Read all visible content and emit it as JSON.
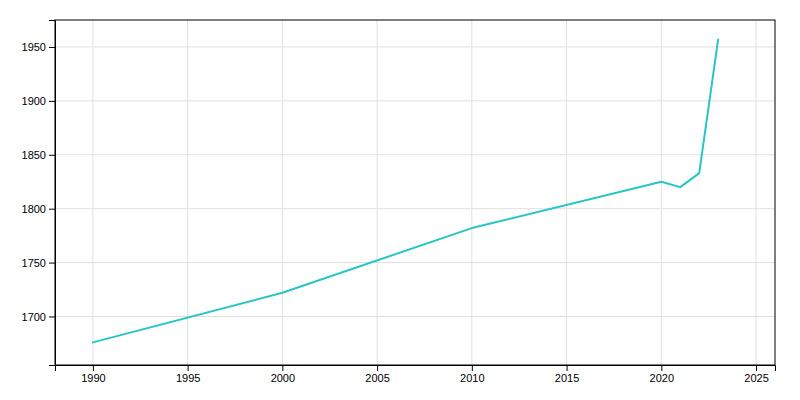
{
  "chart_data": {
    "type": "line",
    "x": [
      1990,
      2000,
      2010,
      2020,
      2021,
      2022,
      2023
    ],
    "values": [
      1676,
      1722,
      1782,
      1825,
      1820,
      1833,
      1957
    ],
    "color": "#28C5C5",
    "xlim": [
      1988,
      2026
    ],
    "ylim": [
      1655,
      1975
    ],
    "xticks": [
      1990,
      1995,
      2000,
      2005,
      2010,
      2015,
      2020,
      2025
    ],
    "yticks": [
      1700,
      1750,
      1800,
      1850,
      1900,
      1950
    ],
    "grid": true
  }
}
